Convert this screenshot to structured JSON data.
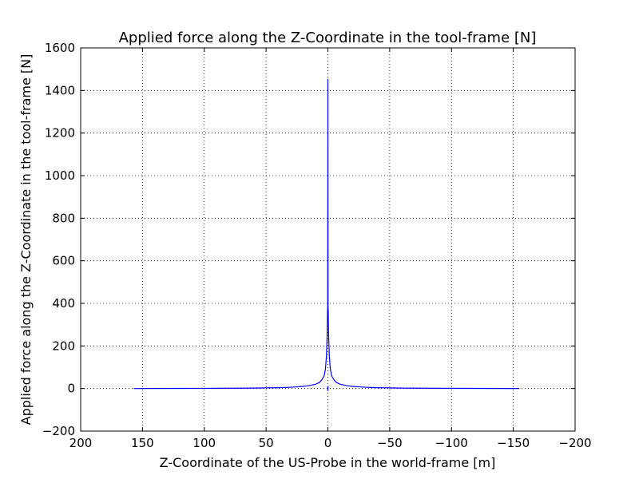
{
  "colors": {
    "series": "#0000ff",
    "grid": "#000000",
    "axes": "#000000",
    "background": "#ffffff"
  },
  "chart_data": {
    "type": "line",
    "title": "Applied force along the Z-Coordinate in the tool-frame [N]",
    "xlabel": "Z-Coordinate of the US-Probe in the world-frame [m]",
    "ylabel": "Applied force along the Z-Coordinate in the tool-frame [N]",
    "xlim": [
      200,
      -200
    ],
    "ylim": [
      -200,
      1600
    ],
    "x_inverted": true,
    "grid": true,
    "x_ticks": [
      200,
      150,
      100,
      50,
      0,
      -50,
      -100,
      -150,
      -200
    ],
    "x_tick_labels": [
      "200",
      "150",
      "100",
      "50",
      "0",
      "−50",
      "−100",
      "−150",
      "−200"
    ],
    "y_ticks": [
      -200,
      0,
      200,
      400,
      600,
      800,
      1000,
      1200,
      1400,
      1600
    ],
    "y_tick_labels": [
      "−200",
      "0",
      "200",
      "400",
      "600",
      "800",
      "1000",
      "1200",
      "1400",
      "1600"
    ],
    "series": [
      {
        "x": [
          157,
          120,
          90,
          60,
          40,
          30,
          20,
          15,
          10,
          7,
          5,
          3,
          2,
          1.2,
          0.6,
          0.3,
          0.15,
          0,
          -0.15,
          -0.3,
          -0.6,
          -1.2,
          -2,
          -3,
          -5,
          -7,
          -10,
          -15,
          -20,
          -30,
          -40,
          -60,
          -90,
          -120,
          -155
        ],
        "y": [
          0,
          0.5,
          1,
          2,
          4,
          6,
          10,
          14,
          20,
          28,
          40,
          60,
          90,
          150,
          250,
          360,
          385,
          1455,
          385,
          360,
          250,
          150,
          90,
          60,
          40,
          28,
          20,
          14,
          10,
          6,
          4,
          2,
          1,
          0.5,
          0
        ]
      }
    ]
  }
}
